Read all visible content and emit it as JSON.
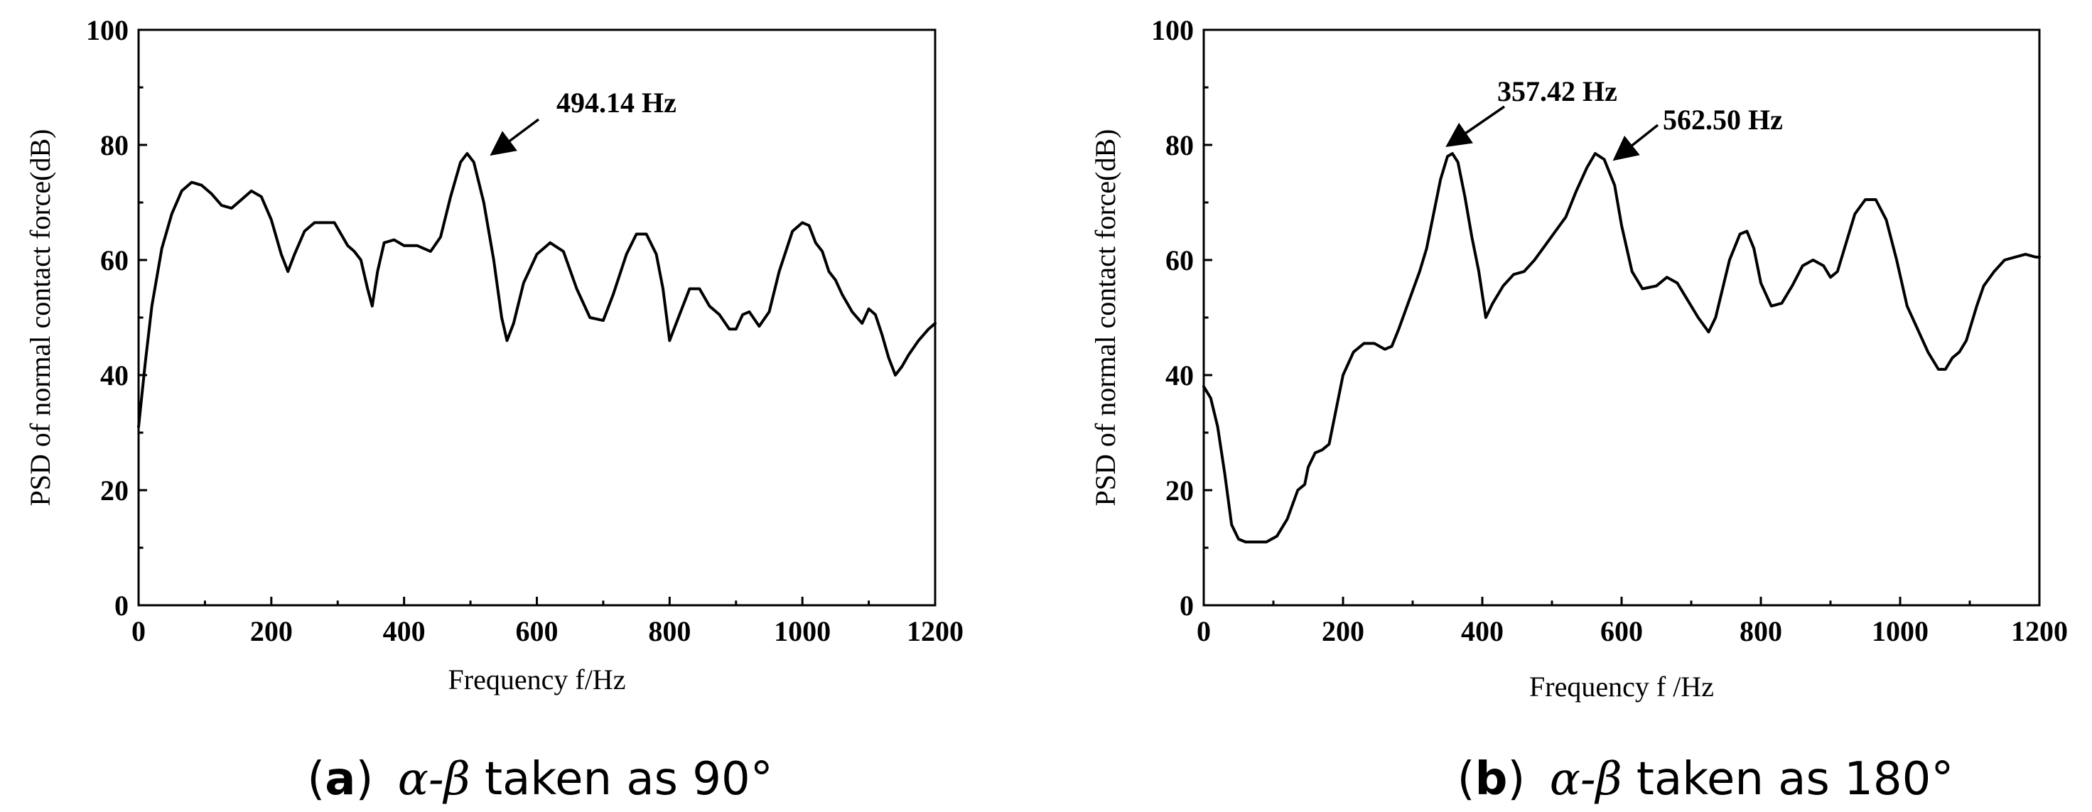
{
  "chart_data": [
    {
      "type": "line",
      "xlabel": "Frequency f/Hz",
      "ylabel": "PSD of normal contact force(dB)",
      "xlim": [
        0,
        1200
      ],
      "ylim": [
        0,
        100
      ],
      "x_ticks": [
        0,
        200,
        400,
        600,
        800,
        1000,
        1200
      ],
      "y_ticks": [
        0,
        20,
        40,
        60,
        80,
        100
      ],
      "caption": {
        "label": "a",
        "text_before": " ",
        "greek": "α-β",
        "text_after": " taken as 90°"
      },
      "annotations": [
        {
          "text": "494.14 Hz",
          "x": 494.14,
          "y": 78.5
        }
      ],
      "series": [
        {
          "x": [
            0,
            10,
            20,
            35,
            50,
            65,
            80,
            95,
            110,
            125,
            140,
            155,
            170,
            185,
            200,
            215,
            225,
            235,
            250,
            265,
            280,
            295,
            305,
            315,
            325,
            335,
            345,
            352,
            360,
            370,
            385,
            400,
            420,
            440,
            455,
            470,
            485,
            495,
            505,
            520,
            535,
            547,
            555,
            565,
            580,
            600,
            620,
            640,
            660,
            680,
            700,
            715,
            735,
            750,
            765,
            780,
            790,
            800,
            815,
            830,
            845,
            860,
            875,
            890,
            900,
            910,
            920,
            935,
            950,
            965,
            985,
            1000,
            1010,
            1020,
            1030,
            1040,
            1050,
            1060,
            1075,
            1090,
            1100,
            1110,
            1120,
            1130,
            1140,
            1150,
            1160,
            1175,
            1190,
            1200
          ],
          "y": [
            31,
            42,
            52,
            62,
            68,
            72,
            73.5,
            73,
            71.5,
            69.5,
            69,
            70.5,
            72,
            71,
            67,
            61,
            58,
            61,
            65,
            66.5,
            66.5,
            66.5,
            64.5,
            62.5,
            61.5,
            60,
            55,
            52,
            58,
            63,
            63.5,
            62.5,
            62.5,
            61.5,
            64,
            71,
            77,
            78.5,
            77,
            70,
            60,
            50,
            46,
            49,
            56,
            61,
            63,
            61.5,
            55,
            50,
            49.5,
            54,
            61,
            64.5,
            64.5,
            61,
            55,
            46,
            50.5,
            55,
            55,
            52,
            50.5,
            48,
            48,
            50.5,
            51,
            48.5,
            51,
            58,
            65,
            66.5,
            66,
            63,
            61.5,
            58,
            56.5,
            54,
            51,
            49,
            51.5,
            50.5,
            47,
            43,
            40,
            41.5,
            43.5,
            46,
            48,
            49
          ]
        }
      ]
    },
    {
      "type": "line",
      "xlabel": "Frequency f /Hz",
      "ylabel": "PSD of normal contact force(dB)",
      "xlim": [
        0,
        1200
      ],
      "ylim": [
        0,
        100
      ],
      "x_ticks": [
        0,
        200,
        400,
        600,
        800,
        1000,
        1200
      ],
      "y_ticks": [
        0,
        20,
        40,
        60,
        80,
        100
      ],
      "caption": {
        "label": "b",
        "text_before": " ",
        "greek": "α-β",
        "text_after": " taken as 180°"
      },
      "annotations": [
        {
          "text": "357.42 Hz",
          "x": 357.42,
          "y": 78.5
        },
        {
          "text": "562.50 Hz",
          "x": 562.5,
          "y": 78.5
        }
      ],
      "series": [
        {
          "x": [
            0,
            10,
            20,
            30,
            40,
            50,
            60,
            75,
            90,
            105,
            120,
            135,
            145,
            150,
            160,
            170,
            180,
            190,
            200,
            215,
            230,
            245,
            260,
            270,
            280,
            295,
            310,
            320,
            330,
            340,
            350,
            357,
            365,
            375,
            385,
            395,
            405,
            415,
            430,
            445,
            460,
            475,
            490,
            505,
            520,
            535,
            550,
            562,
            575,
            590,
            600,
            615,
            630,
            650,
            665,
            680,
            695,
            710,
            725,
            735,
            745,
            755,
            770,
            780,
            790,
            800,
            815,
            830,
            845,
            860,
            875,
            890,
            900,
            910,
            920,
            935,
            950,
            965,
            980,
            995,
            1010,
            1025,
            1040,
            1055,
            1065,
            1075,
            1085,
            1095,
            1110,
            1120,
            1135,
            1150,
            1165,
            1180,
            1195,
            1200
          ],
          "y": [
            38,
            36,
            31,
            23,
            14,
            11.5,
            11,
            11,
            11,
            12,
            15,
            20,
            21,
            24,
            26.5,
            27,
            28,
            34,
            40,
            44,
            45.5,
            45.5,
            44.5,
            45,
            48,
            53,
            58,
            62,
            68,
            74,
            78,
            78.5,
            77,
            71,
            64,
            58,
            50,
            52.5,
            55.5,
            57.5,
            58,
            60,
            62.5,
            65,
            67.5,
            72,
            76,
            78.5,
            77.5,
            73,
            66,
            58,
            55,
            55.5,
            57,
            56,
            53,
            50,
            47.5,
            50,
            55,
            60,
            64.5,
            65,
            62,
            56,
            52,
            52.5,
            55.5,
            59,
            60,
            59,
            57,
            58,
            62,
            68,
            70.5,
            70.5,
            67,
            60,
            52,
            48,
            44,
            41,
            41,
            43,
            44,
            46,
            52,
            55.5,
            58,
            60,
            60.5,
            61,
            60.5,
            60.5
          ]
        }
      ]
    }
  ]
}
